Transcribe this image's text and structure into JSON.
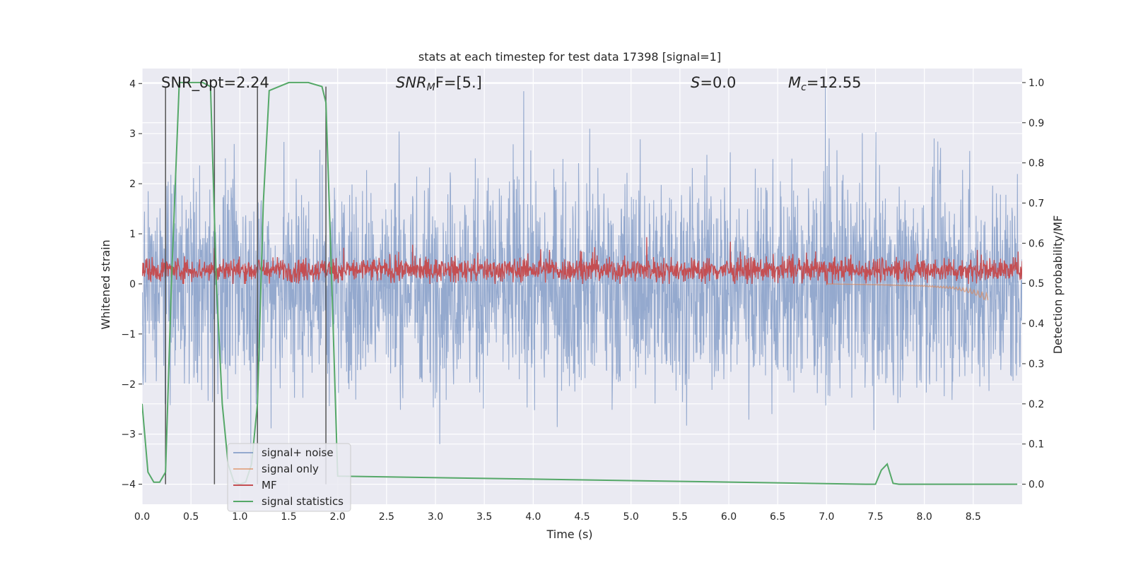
{
  "chart_data": {
    "type": "line",
    "title": "stats at each timestep for test data 17398 [signal=1]",
    "xlabel": "Time (s)",
    "ylabel_left": "Whitened strain",
    "ylabel_right": "Detection probability/MF",
    "xlim": [
      0.0,
      9.0
    ],
    "ylim_left": [
      -4.4,
      4.3
    ],
    "ylim_right": [
      -0.05,
      1.035
    ],
    "xticks": [
      "0.0",
      "0.5",
      "1.0",
      "1.5",
      "2.0",
      "2.5",
      "3.0",
      "3.5",
      "4.0",
      "4.5",
      "5.0",
      "5.5",
      "6.0",
      "6.5",
      "7.0",
      "7.5",
      "8.0",
      "8.5"
    ],
    "xtick_values": [
      0.0,
      0.5,
      1.0,
      1.5,
      2.0,
      2.5,
      3.0,
      3.5,
      4.0,
      4.5,
      5.0,
      5.5,
      6.0,
      6.5,
      7.0,
      7.5,
      8.0,
      8.5
    ],
    "yticks_left": [
      "−4",
      "−3",
      "−2",
      "−1",
      "0",
      "1",
      "2",
      "3",
      "4"
    ],
    "ytick_left_values": [
      -4,
      -3,
      -2,
      -1,
      0,
      1,
      2,
      3,
      4
    ],
    "yticks_right": [
      "0.0",
      "0.1",
      "0.2",
      "0.3",
      "0.4",
      "0.5",
      "0.6",
      "0.7",
      "0.8",
      "0.9",
      "1.0"
    ],
    "ytick_right_values": [
      0.0,
      0.1,
      0.2,
      0.3,
      0.4,
      0.5,
      0.6,
      0.7,
      0.8,
      0.9,
      1.0
    ],
    "grid": true,
    "legend_position": "lower-left",
    "annotations": {
      "snr_opt": "SNR_opt=2.24",
      "snr_mf_main": "SNR",
      "snr_mf_sub": "M",
      "snr_mf_rest": "F=[5.]",
      "s_var": "S",
      "s_rest": "=0.0",
      "mc_var": "M",
      "mc_sub": "c",
      "mc_rest": "=12.55"
    },
    "series": [
      {
        "name": "signal+ noise",
        "color": "#4c72b0",
        "axis": "left",
        "noise_range": [
          -4.0,
          4.0
        ],
        "x_range": [
          0.0,
          9.0
        ]
      },
      {
        "name": "signal only",
        "color": "#dd8452",
        "axis": "left",
        "x": [
          7.0,
          7.5,
          8.0,
          8.3,
          8.5,
          8.6,
          8.65,
          8.66
        ],
        "y": [
          0.0,
          -0.02,
          -0.05,
          -0.1,
          -0.2,
          -0.3,
          -0.35,
          0.0
        ]
      },
      {
        "name": "MF",
        "color": "#c44e52",
        "axis": "left",
        "band": [
          0.0,
          0.6
        ],
        "x_range": [
          0.0,
          9.0
        ]
      },
      {
        "name": "signal statistics",
        "color": "#55a868",
        "axis": "right",
        "x": [
          0.0,
          0.06,
          0.12,
          0.18,
          0.24,
          0.3,
          0.38,
          0.5,
          0.62,
          0.7,
          0.76,
          0.82,
          0.88,
          0.94,
          1.0,
          1.06,
          1.12,
          1.18,
          1.24,
          1.3,
          1.5,
          1.7,
          1.84,
          1.88,
          1.94,
          2.0,
          7.4,
          7.5,
          7.56,
          7.62,
          7.68,
          7.74,
          8.95
        ],
        "y": [
          0.2,
          0.03,
          0.005,
          0.005,
          0.03,
          0.5,
          1.0,
          1.0,
          1.0,
          0.99,
          0.5,
          0.2,
          0.05,
          0.005,
          0.0,
          0.005,
          0.05,
          0.2,
          0.7,
          0.98,
          1.0,
          1.0,
          0.99,
          0.95,
          0.5,
          0.02,
          0.0,
          0.0,
          0.035,
          0.05,
          0.002,
          0.0,
          0.0
        ]
      },
      {
        "name": "markers",
        "color": "#555555",
        "axis": "right",
        "x": [
          0.24,
          0.74,
          1.18,
          1.88
        ],
        "y_top": 0.99
      }
    ]
  }
}
